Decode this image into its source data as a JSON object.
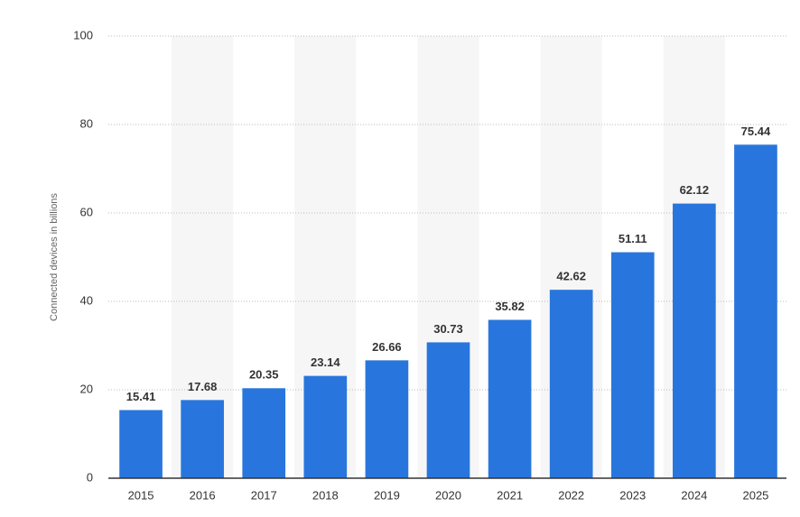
{
  "chart_data": {
    "type": "bar",
    "y_label": "Connected devices in billions",
    "categories": [
      "2015",
      "2016",
      "2017",
      "2018",
      "2019",
      "2020",
      "2021",
      "2022",
      "2023",
      "2024",
      "2025"
    ],
    "values": [
      15.41,
      17.68,
      20.35,
      23.14,
      26.66,
      30.73,
      35.82,
      42.62,
      51.11,
      62.12,
      75.44
    ],
    "color": "#2876dd",
    "ylim": [
      0,
      100
    ],
    "yticks": [
      0,
      20,
      40,
      60,
      80,
      100
    ],
    "grid": true
  }
}
